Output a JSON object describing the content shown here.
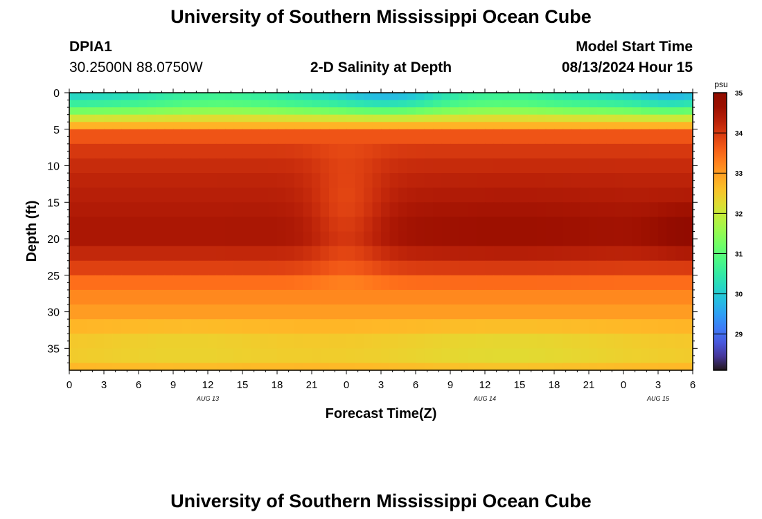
{
  "page": {
    "title": "University of Southern Mississippi Ocean Cube",
    "title_repeat": "University of Southern Mississippi Ocean Cube"
  },
  "station": {
    "id": "DPIA1",
    "coords": "30.2500N  88.0750W"
  },
  "model": {
    "start_label": "Model Start Time",
    "start_value": "08/13/2024 Hour 15"
  },
  "chart_data": {
    "type": "heatmap",
    "title": "2-D Salinity at Depth",
    "xlabel": "Forecast Time(Z)",
    "ylabel": "Depth (ft)",
    "x_hours_range": [
      0,
      54
    ],
    "x_tick_labels": [
      "0",
      "3",
      "6",
      "9",
      "12",
      "15",
      "18",
      "21",
      "0",
      "3",
      "6",
      "9",
      "12",
      "15",
      "18",
      "21",
      "0",
      "3",
      "6"
    ],
    "day_labels": [
      {
        "text": "AUG 13",
        "hour": 12
      },
      {
        "text": "AUG 14",
        "hour": 36
      },
      {
        "text": "AUG 15",
        "hour": 51
      }
    ],
    "ylim": [
      0,
      38
    ],
    "y_ticks": [
      0,
      5,
      10,
      15,
      20,
      25,
      30,
      35
    ],
    "colorbar": {
      "unit": "psu",
      "range": [
        28.1,
        35
      ],
      "ticks": [
        29,
        30,
        31,
        32,
        33,
        34,
        35
      ],
      "colormap": "turbo"
    },
    "depth_profile_ft": [
      0,
      1,
      2,
      3,
      4,
      5,
      6,
      8,
      10,
      12,
      15,
      18,
      20,
      22,
      24,
      25,
      27,
      30,
      32,
      34,
      36,
      38
    ],
    "salinity_profile_psu": [
      30.0,
      30.3,
      30.8,
      31.7,
      32.5,
      33.0,
      33.7,
      34.0,
      34.15,
      34.25,
      34.35,
      34.45,
      34.45,
      34.2,
      33.9,
      33.6,
      33.3,
      33.0,
      32.75,
      32.55,
      32.5,
      32.8
    ],
    "features": [
      {
        "name": "mid-forecast mixing",
        "hour": 24,
        "effect_psu": -0.6
      },
      {
        "name": "salinity maximum",
        "hour": 54,
        "depth_ft": 19,
        "value_psu": 34.95
      }
    ]
  }
}
